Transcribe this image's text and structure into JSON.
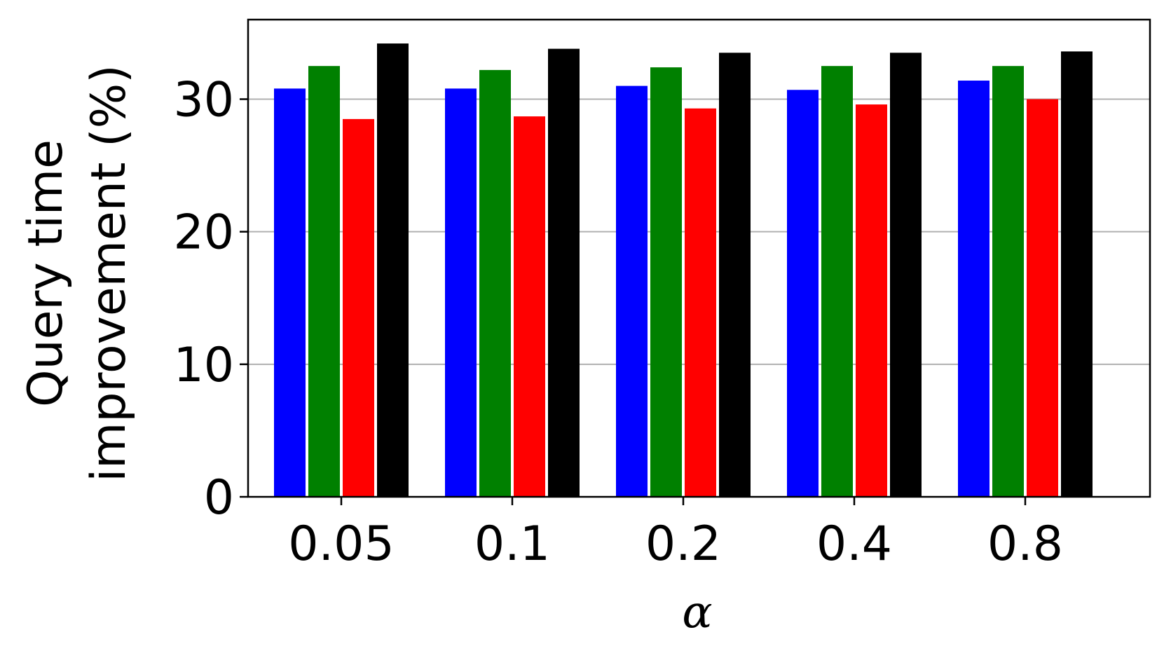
{
  "chart_data": {
    "type": "bar",
    "categories": [
      "0.05",
      "0.1",
      "0.2",
      "0.4",
      "0.8"
    ],
    "series": [
      {
        "color": "#0000ff",
        "values": [
          30.8,
          30.8,
          31.0,
          30.7,
          31.4
        ]
      },
      {
        "color": "#008000",
        "values": [
          32.5,
          32.2,
          32.4,
          32.5,
          32.5
        ]
      },
      {
        "color": "#ff0000",
        "values": [
          28.5,
          28.7,
          29.3,
          29.6,
          30.0
        ]
      },
      {
        "color": "#000000",
        "values": [
          34.2,
          33.8,
          33.5,
          33.5,
          33.6
        ]
      }
    ],
    "xlabel": "α",
    "ylabel_line1": "Query time",
    "ylabel_line2": "improvement (%)",
    "yticks": [
      "0",
      "10",
      "20",
      "30"
    ],
    "ylim": [
      0,
      36
    ],
    "grid": "horizontal"
  }
}
